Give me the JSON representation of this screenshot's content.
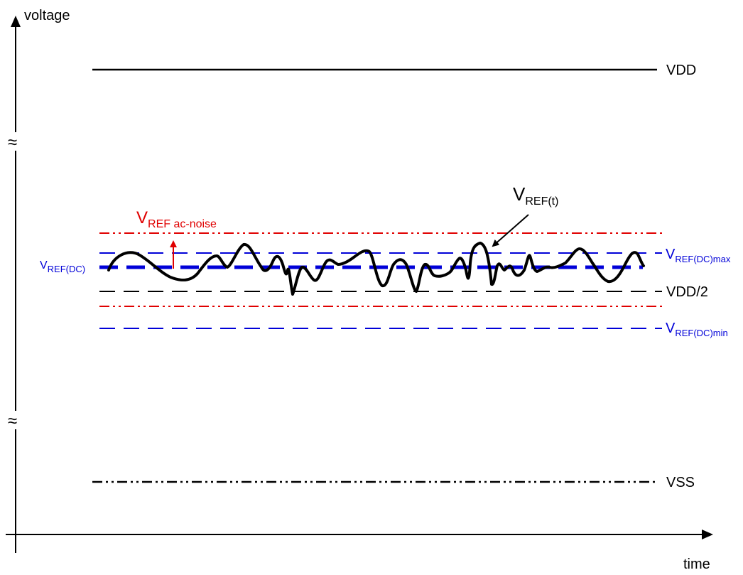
{
  "axes": {
    "y_label": "voltage",
    "x_label": "time"
  },
  "lines": {
    "vdd": {
      "label": "VDD"
    },
    "vss": {
      "label": "VSS"
    },
    "vdd_half": {
      "label": "VDD/2"
    },
    "vref_dc": {
      "label_main": "V",
      "label_sub": "REF(DC)"
    },
    "vref_dc_max": {
      "label_main": "V",
      "label_sub": "REF(DC)max"
    },
    "vref_dc_min": {
      "label_main": "V",
      "label_sub": "REF(DC)min"
    }
  },
  "annotations": {
    "ac_noise": {
      "label_main": "V",
      "label_sub": "REF ac-noise"
    },
    "vref_t": {
      "label_main": "V",
      "label_sub": "REF(t)"
    }
  },
  "axis_break_symbol": "≈",
  "colors": {
    "black": "#000000",
    "blue": "#0000d8",
    "red": "#e00000"
  }
}
